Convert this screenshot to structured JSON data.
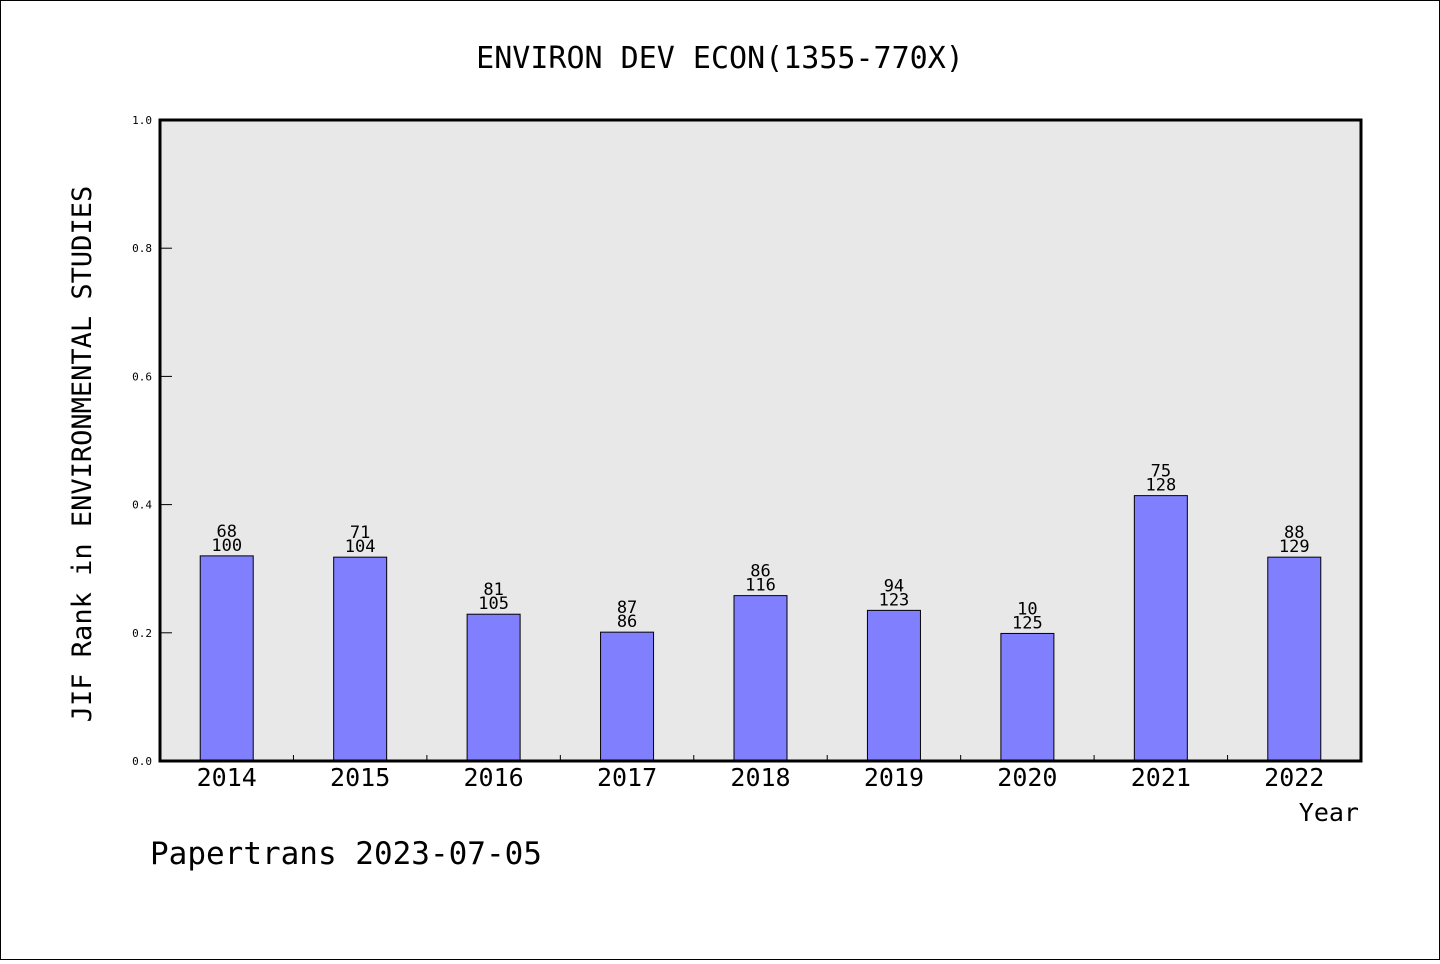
{
  "chart_data": {
    "type": "bar",
    "title": "ENVIRON DEV ECON(1355-770X)",
    "xlabel": "Year",
    "ylabel": "JIF Rank in ENVIRONMENTAL STUDIES",
    "ylim": [
      0,
      1.0
    ],
    "yticks": [
      "0.0",
      "0.2",
      "0.4",
      "0.6",
      "0.8",
      "1.0"
    ],
    "categories": [
      "2014",
      "2015",
      "2016",
      "2017",
      "2018",
      "2019",
      "2020",
      "2021",
      "2022"
    ],
    "values": [
      0.32,
      0.318,
      0.229,
      0.201,
      0.258,
      0.235,
      0.199,
      0.414,
      0.318
    ],
    "rank": [
      "68",
      "71",
      "81",
      "87",
      "86",
      "94",
      "10",
      "75",
      "88"
    ],
    "total": [
      "100",
      "104",
      "105",
      "86",
      "116",
      "123",
      "125",
      "128",
      "129"
    ],
    "bar_color": "#8080ff",
    "plot_background": "#e8e8e8",
    "grid": false,
    "legend": "none"
  },
  "footer": "Papertrans 2023-07-05"
}
